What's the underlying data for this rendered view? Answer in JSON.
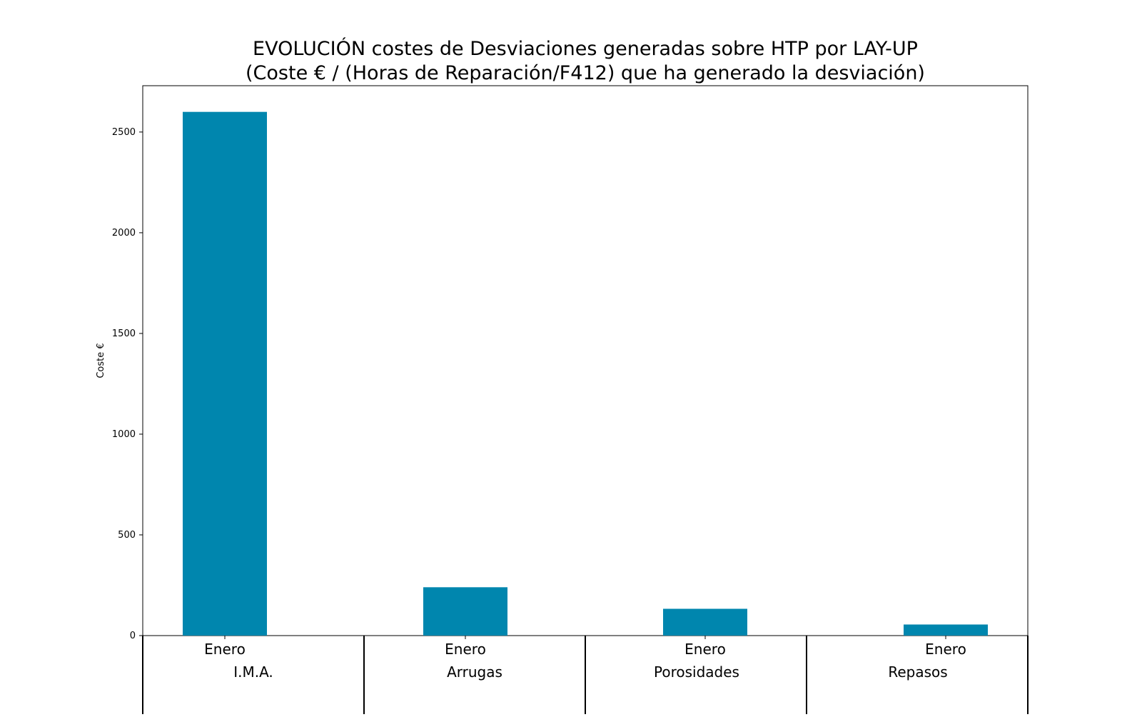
{
  "chart_data": {
    "type": "bar",
    "title_line1": "EVOLUCIÓN costes de Desviaciones  generadas  sobre HTP por LAY-UP",
    "title_line2": "(Coste € / (Horas de Reparación/F412) que ha generado la desviación)",
    "ylabel": "Coste €",
    "ylim": [
      0,
      2730
    ],
    "yticks": [
      0,
      500,
      1000,
      1500,
      2000,
      2500
    ],
    "categories": [
      "Enero",
      "Enero",
      "Enero",
      "Enero"
    ],
    "groups": [
      "I.M.A.",
      "Arrugas",
      "Porosidades",
      "Repasos"
    ],
    "values": [
      2600,
      240,
      133,
      55
    ],
    "bar_color": "#0086AE"
  }
}
